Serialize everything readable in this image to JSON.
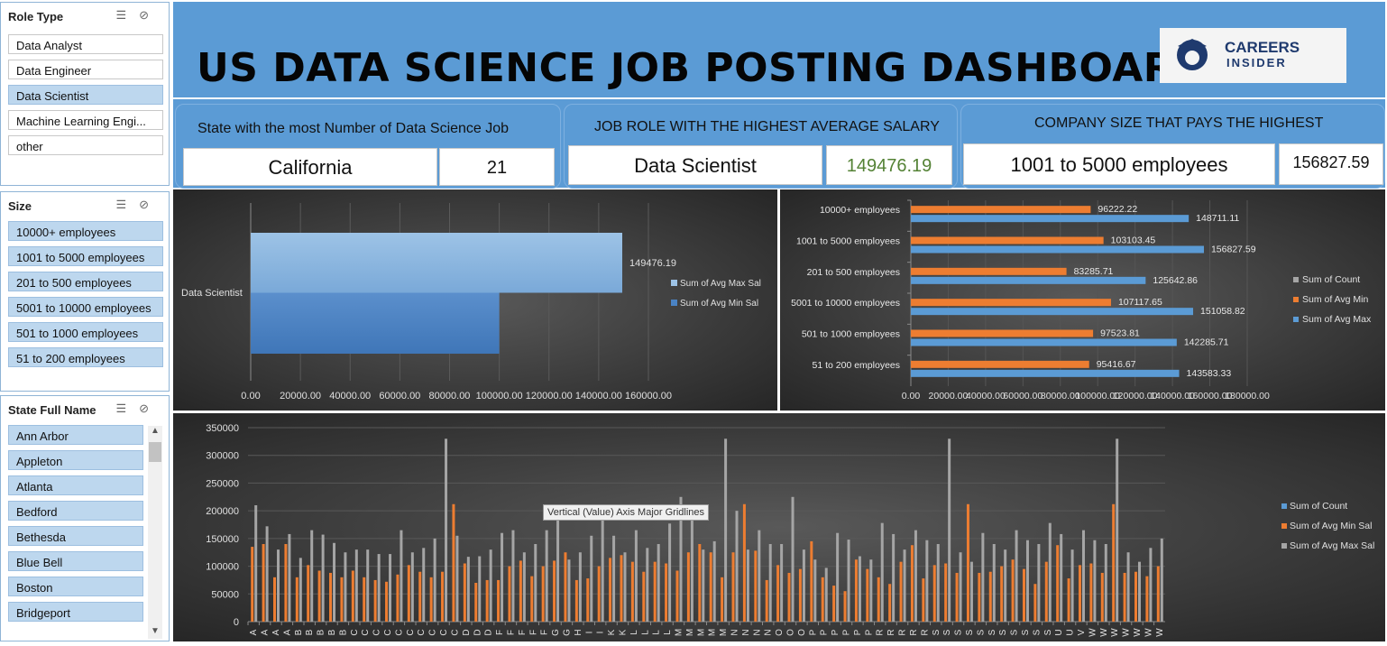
{
  "slicers": {
    "role_type": {
      "title": "Role Type",
      "items": [
        {
          "label": "Data Analyst",
          "selected": false
        },
        {
          "label": "Data Engineer",
          "selected": false
        },
        {
          "label": "Data Scientist",
          "selected": true
        },
        {
          "label": "Machine Learning Engi...",
          "selected": false
        },
        {
          "label": "other",
          "selected": false
        }
      ]
    },
    "size": {
      "title": "Size",
      "items": [
        {
          "label": "10000+ employees",
          "selected": true
        },
        {
          "label": "1001 to 5000 employees",
          "selected": true
        },
        {
          "label": "201 to 500 employees",
          "selected": true
        },
        {
          "label": "5001 to 10000 employees",
          "selected": true
        },
        {
          "label": "501 to 1000 employees",
          "selected": true
        },
        {
          "label": "51 to 200 employees",
          "selected": true
        }
      ]
    },
    "state": {
      "title": "State Full Name",
      "items": [
        {
          "label": "Ann Arbor",
          "selected": true
        },
        {
          "label": "Appleton",
          "selected": true
        },
        {
          "label": "Atlanta",
          "selected": true
        },
        {
          "label": "Bedford",
          "selected": true
        },
        {
          "label": "Bethesda",
          "selected": true
        },
        {
          "label": "Blue Bell",
          "selected": true
        },
        {
          "label": "Boston",
          "selected": true
        },
        {
          "label": "Bridgeport",
          "selected": true
        }
      ]
    }
  },
  "header": {
    "title": "US DATA SCIENCE JOB POSTING DASHBOARD",
    "logo_line1": "CAREERS",
    "logo_line2": "INSIDER"
  },
  "kpis": {
    "state": {
      "label": "State with the most Number of Data Science Job",
      "value": "California",
      "count": "21"
    },
    "role": {
      "label": "JOB ROLE WITH THE HIGHEST AVERAGE SALARY",
      "value": "Data Scientist",
      "salary": "149476.19"
    },
    "company": {
      "label": "COMPANY SIZE THAT PAYS THE HIGHEST",
      "value": "1001 to 5000 employees",
      "salary": "156827.59"
    }
  },
  "colors": {
    "blue": "#5b9bd5",
    "orange": "#ed7d31",
    "gray": "#a5a5a5",
    "kpi_green": "#548235"
  },
  "tooltip": "Vertical (Value) Axis Major Gridlines",
  "chart_data": [
    {
      "type": "bar",
      "orientation": "horizontal",
      "categories": [
        "Data Scientist"
      ],
      "series": [
        {
          "name": "Sum of Avg Max Sal",
          "values": [
            149476.19
          ]
        },
        {
          "name": "Sum of Avg Min Sal",
          "values": [
            100000
          ]
        }
      ],
      "data_labels": [
        "149476.19"
      ],
      "xticks": [
        "0.00",
        "20000.00",
        "40000.00",
        "60000.00",
        "80000.00",
        "100000.00",
        "120000.00",
        "140000.00",
        "160000.00"
      ],
      "xlim": [
        0,
        160000
      ],
      "legend": "right"
    },
    {
      "type": "bar",
      "orientation": "horizontal",
      "categories": [
        "10000+ employees",
        "1001 to 5000 employees",
        "201 to 500 employees",
        "5001 to 10000 employees",
        "501 to 1000 employees",
        "51 to 200 employees"
      ],
      "series": [
        {
          "name": "Sum of Count",
          "values": [
            0,
            0,
            0,
            0,
            0,
            0
          ]
        },
        {
          "name": "Sum of Avg Min",
          "values": [
            96222.22,
            103103.45,
            83285.71,
            107117.65,
            97523.81,
            95416.67
          ]
        },
        {
          "name": "Sum of Avg Max",
          "values": [
            148711.11,
            156827.59,
            125642.86,
            151058.82,
            142285.71,
            143583.33
          ]
        }
      ],
      "min_labels": [
        "96222.22",
        "103103.45",
        "83285.71",
        "107117.65",
        "97523.81",
        "95416.67"
      ],
      "max_labels": [
        "148711.11",
        "156827.59",
        "125642.86",
        "151058.82",
        "142285.71",
        "143583.33"
      ],
      "xticks": [
        "0.00",
        "20000.00",
        "40000.00",
        "60000.00",
        "80000.00",
        "100000.00",
        "120000.00",
        "140000.00",
        "160000.00",
        "180000.00"
      ],
      "xlim": [
        0,
        180000
      ],
      "legend": "right"
    },
    {
      "type": "bar",
      "orientation": "vertical",
      "categories": [
        "A",
        "A",
        "A",
        "A",
        "B",
        "B",
        "B",
        "B",
        "B",
        "C",
        "C",
        "C",
        "C",
        "C",
        "C",
        "C",
        "C",
        "C",
        "C",
        "D",
        "D",
        "D",
        "F",
        "F",
        "F",
        "F",
        "F",
        "G",
        "G",
        "H",
        "I",
        "I",
        "K",
        "K",
        "L",
        "L",
        "L",
        "L",
        "M",
        "M",
        "M",
        "M",
        "M",
        "N",
        "N",
        "N",
        "N",
        "O",
        "O",
        "O",
        "P",
        "P",
        "P",
        "P",
        "P",
        "P",
        "R",
        "R",
        "R",
        "R",
        "R",
        "S",
        "S",
        "S",
        "S",
        "S",
        "S",
        "S",
        "S",
        "S",
        "S",
        "S",
        "U",
        "U",
        "V",
        "W",
        "W",
        "W",
        "W",
        "W",
        "W",
        "W"
      ],
      "series": [
        {
          "name": "Sum of Count",
          "values": [
            1,
            1,
            1,
            1,
            1,
            1,
            1,
            1,
            1,
            1,
            1,
            1,
            1,
            1,
            1,
            1,
            1,
            1,
            1,
            1,
            1,
            1,
            1,
            1,
            1,
            1,
            1,
            1,
            1,
            1,
            1,
            1,
            1,
            1,
            1,
            1,
            1,
            1,
            1,
            1,
            1,
            1,
            1,
            1,
            1,
            1,
            1,
            1,
            1,
            1,
            1,
            1,
            1,
            1,
            1,
            1,
            1,
            1,
            1,
            1,
            1,
            1,
            1,
            1,
            1,
            1,
            1,
            1,
            1,
            1,
            1,
            1,
            1,
            1,
            1,
            1,
            1,
            1,
            1,
            1,
            1,
            1
          ]
        },
        {
          "name": "Sum of Avg Min Sal",
          "values": [
            135000,
            140000,
            80000,
            140000,
            80000,
            102000,
            92000,
            88000,
            80000,
            92000,
            80000,
            75000,
            72000,
            85000,
            102000,
            90000,
            80000,
            90000,
            212000,
            105000,
            70000,
            75000,
            75000,
            100000,
            110000,
            82000,
            100000,
            110000,
            125000,
            75000,
            78000,
            100000,
            115000,
            120000,
            108000,
            90000,
            108000,
            105000,
            92000,
            125000,
            140000,
            125000,
            80000,
            125000,
            212000,
            128000,
            75000,
            102000,
            88000,
            95000,
            145000,
            80000,
            65000,
            55000,
            112000,
            95000,
            80000,
            68000,
            108000,
            138000,
            78000,
            102000,
            105000,
            88000,
            212000,
            88000,
            90000,
            100000,
            112000,
            95000,
            68000,
            108000,
            138000,
            78000,
            102000,
            105000,
            88000,
            212000,
            88000,
            90000,
            82000,
            100000
          ]
        },
        {
          "name": "Sum of Avg Max Sal",
          "values": [
            210000,
            172000,
            130000,
            158000,
            115000,
            165000,
            157000,
            142000,
            125000,
            130000,
            130000,
            122000,
            122000,
            165000,
            125000,
            133000,
            150000,
            330000,
            155000,
            117000,
            118000,
            130000,
            160000,
            165000,
            125000,
            140000,
            165000,
            195000,
            112000,
            125000,
            155000,
            195000,
            155000,
            125000,
            165000,
            133000,
            140000,
            177000,
            225000,
            197000,
            130000,
            145000,
            330000,
            200000,
            130000,
            165000,
            140000,
            140000,
            225000,
            130000,
            112000,
            97000,
            160000,
            148000,
            118000,
            112000,
            178000,
            158000,
            130000,
            165000,
            147000,
            140000,
            330000,
            125000,
            108000,
            160000,
            140000,
            130000,
            165000,
            147000,
            140000,
            178000,
            158000,
            130000,
            165000,
            147000,
            140000,
            330000,
            125000,
            108000,
            133000,
            150000
          ]
        }
      ],
      "yticks": [
        "0",
        "50000",
        "100000",
        "150000",
        "200000",
        "250000",
        "300000",
        "350000"
      ],
      "ylim": [
        0,
        350000
      ],
      "legend": "right"
    }
  ]
}
